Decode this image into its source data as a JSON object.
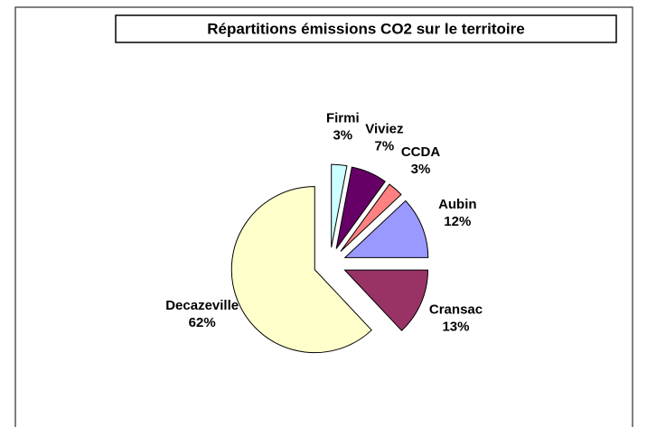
{
  "chart_data": {
    "type": "pie",
    "title": "Répartitions émissions CO2 sur le territoire",
    "categories": [
      "Firmi",
      "Viviez",
      "CCDA",
      "Aubin",
      "Cransac",
      "Decazeville"
    ],
    "values": [
      3,
      7,
      3,
      12,
      13,
      62
    ],
    "value_labels": [
      "3%",
      "7%",
      "3%",
      "12%",
      "13%",
      "62%"
    ],
    "colors": [
      "#ccffff",
      "#660066",
      "#ff8080",
      "#9999ff",
      "#993366",
      "#ffffcc"
    ],
    "exploded": true
  }
}
